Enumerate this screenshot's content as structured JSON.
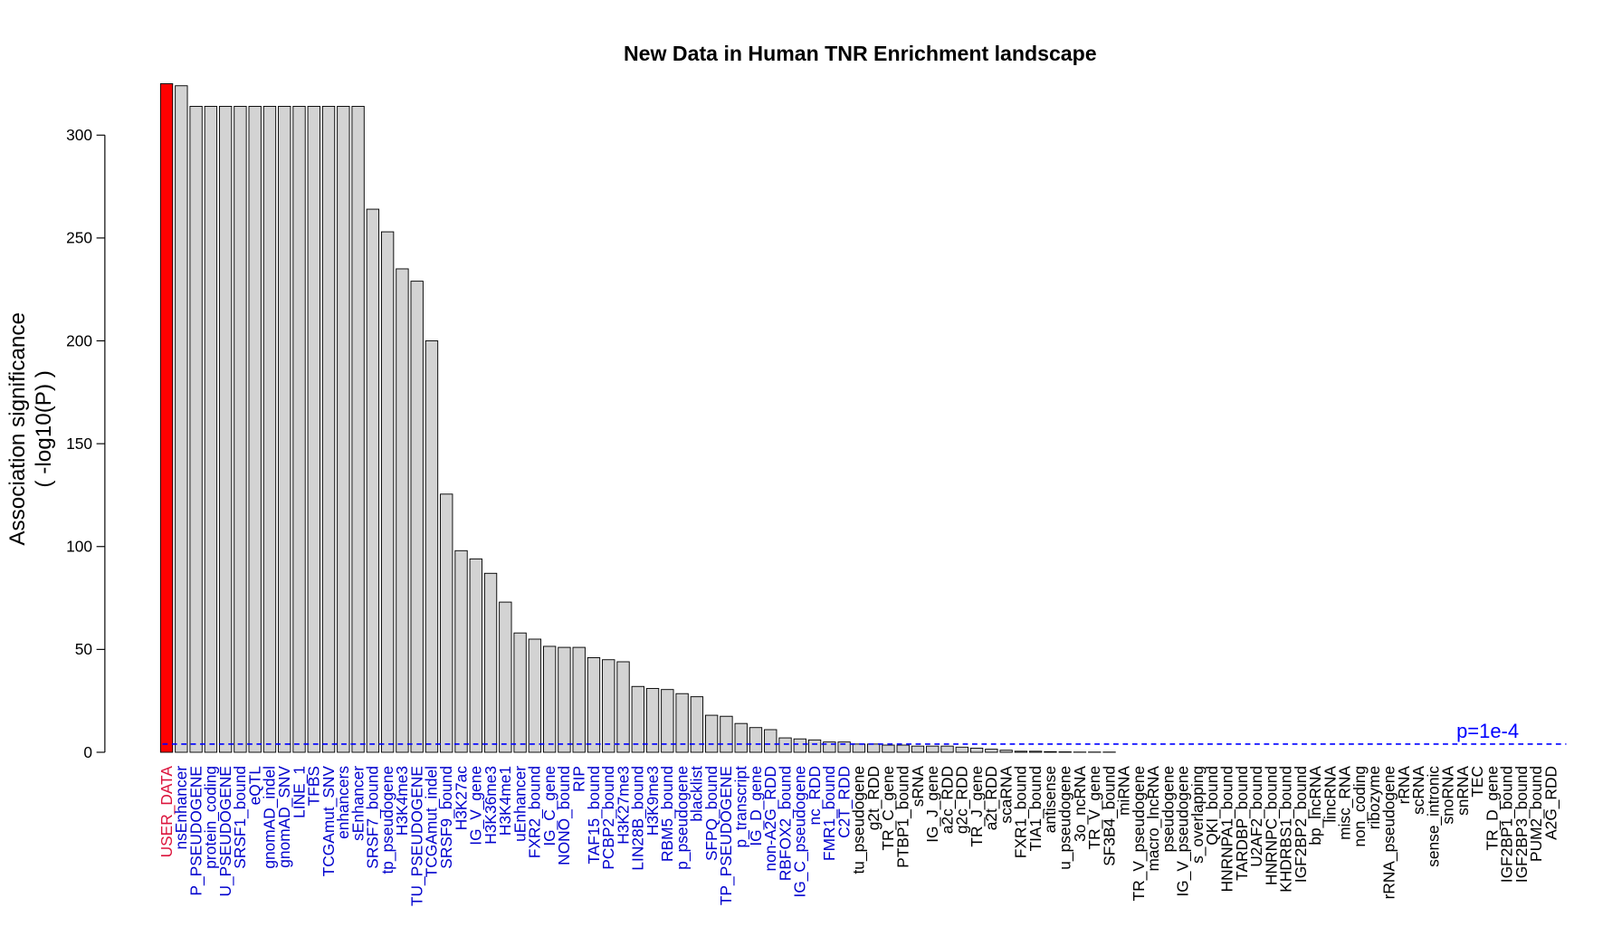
{
  "chart_data": {
    "type": "bar",
    "title": "New Data in Human TNR Enrichment landscape",
    "y_label": [
      "Association significance",
      "( -log10(P) )"
    ],
    "categories": [
      "USER_DATA",
      "nsEnhancer",
      "P_PSEUDOGENE",
      "protein_coding",
      "U_PSEUDOGENE",
      "SRSF1_bound",
      "eQTL",
      "gnomAD_indel",
      "gnomAD_SNV",
      "LINE_1",
      "TFBS",
      "TCGAmut_SNV",
      "enhancers",
      "sEnhancer",
      "SRSF7_bound",
      "tp_pseudogene",
      "H3K4me3",
      "TU_PSEUDOGENE",
      "TCGAmut_indel",
      "SRSF9_bound",
      "H3K27ac",
      "IG_V_gene",
      "H3K36me3",
      "H3K4me1",
      "uEnhancer",
      "FXR2_bound",
      "IG_C_gene",
      "NONO_bound",
      "RIP",
      "TAF15_bound",
      "PCBP2_bound",
      "H3K27me3",
      "LIN28B_bound",
      "H3K9me3",
      "RBM5_bound",
      "p_pseudogene",
      "blacklist",
      "SFPQ_bound",
      "TP_PSEUDOGENE",
      "p_transcript",
      "IG_D_gene",
      "non-A2G_RDD",
      "RBFOX2_bound",
      "IG_C_pseudogene",
      "nc_RDD",
      "FMR1_bound",
      "C2T_RDD",
      "tu_pseudogene",
      "g2t_RDD",
      "TR_C_gene",
      "PTBP1_bound",
      "sRNA",
      "IG_J_gene",
      "a2c_RDD",
      "g2c_RDD",
      "TR_J_gene",
      "a2t_RDD",
      "scaRNA",
      "FXR1_bound",
      "TIA1_bound",
      "antisense",
      "u_pseudogene",
      "3o_ncRNA",
      "TR_V_gene",
      "SF3B4_bound",
      "miRNA",
      "TR_V_pseudogene",
      "macro_lncRNA",
      "pseudogene",
      "IG_V_pseudogene",
      "s_overlapping",
      "QKI_bound",
      "HNRNPA1_bound",
      "TARDBP_bound",
      "U2AF2_bound",
      "HNRNPC_bound",
      "KHDRBS1_bound",
      "IGF2BP2_bound",
      "bp_lncRNA",
      "lincRNA",
      "misc_RNA",
      "non_coding",
      "ribozyme",
      "rRNA_pseudogene",
      "rRNA",
      "scRNA",
      "sense_intronic",
      "snoRNA",
      "snRNA",
      "TEC",
      "TR_D_gene",
      "IGF2BP1_bound",
      "IGF2BP3_bound",
      "PUM2_bound",
      "A2G_RDD"
    ],
    "values": [
      325,
      324,
      314,
      314,
      314,
      314,
      314,
      314,
      314,
      314,
      314,
      314,
      314,
      314,
      264,
      253,
      235,
      229,
      200,
      125.5,
      98,
      94,
      87,
      73,
      58,
      55,
      51.5,
      51,
      51,
      46,
      45,
      44,
      32,
      31,
      30.5,
      28.5,
      27,
      18,
      17.5,
      14,
      12,
      11,
      7,
      6.5,
      6,
      5,
      5,
      4,
      4,
      3.5,
      3.5,
      3,
      3,
      3,
      2.5,
      2,
      1.5,
      1,
      0.5,
      0.5,
      0.3,
      0.2,
      0.1,
      0.1,
      0.1,
      0,
      0,
      0,
      0,
      0,
      0,
      0,
      0,
      0,
      0,
      0,
      0,
      0,
      0,
      0,
      0,
      0,
      0,
      0,
      0,
      0,
      0,
      0,
      0,
      0,
      0,
      0,
      0,
      0,
      0
    ],
    "bar_colors": [
      "#ff0000",
      "#d3d3d3",
      "#d3d3d3",
      "#d3d3d3",
      "#d3d3d3",
      "#d3d3d3",
      "#d3d3d3",
      "#d3d3d3",
      "#d3d3d3",
      "#d3d3d3",
      "#d3d3d3",
      "#d3d3d3",
      "#d3d3d3",
      "#d3d3d3",
      "#d3d3d3",
      "#d3d3d3",
      "#d3d3d3",
      "#d3d3d3",
      "#d3d3d3",
      "#d3d3d3",
      "#d3d3d3",
      "#d3d3d3",
      "#d3d3d3",
      "#d3d3d3",
      "#d3d3d3",
      "#d3d3d3",
      "#d3d3d3",
      "#d3d3d3",
      "#d3d3d3",
      "#d3d3d3",
      "#d3d3d3",
      "#d3d3d3",
      "#d3d3d3",
      "#d3d3d3",
      "#d3d3d3",
      "#d3d3d3",
      "#d3d3d3",
      "#d3d3d3",
      "#d3d3d3",
      "#d3d3d3",
      "#d3d3d3",
      "#d3d3d3",
      "#d3d3d3",
      "#d3d3d3",
      "#d3d3d3",
      "#d3d3d3",
      "#d3d3d3",
      "#d3d3d3",
      "#d3d3d3",
      "#d3d3d3",
      "#d3d3d3",
      "#d3d3d3",
      "#d3d3d3",
      "#d3d3d3",
      "#d3d3d3",
      "#d3d3d3",
      "#d3d3d3",
      "#d3d3d3",
      "#d3d3d3",
      "#d3d3d3",
      "#d3d3d3",
      "#d3d3d3",
      "#d3d3d3",
      "#d3d3d3",
      "#d3d3d3",
      "#d3d3d3",
      "#d3d3d3",
      "#d3d3d3",
      "#d3d3d3",
      "#d3d3d3",
      "#d3d3d3",
      "#d3d3d3",
      "#d3d3d3",
      "#d3d3d3",
      "#d3d3d3",
      "#d3d3d3",
      "#d3d3d3",
      "#d3d3d3",
      "#d3d3d3",
      "#d3d3d3",
      "#d3d3d3",
      "#d3d3d3",
      "#d3d3d3",
      "#d3d3d3",
      "#d3d3d3",
      "#d3d3d3",
      "#d3d3d3",
      "#d3d3d3",
      "#d3d3d3",
      "#d3d3d3",
      "#d3d3d3",
      "#d3d3d3",
      "#d3d3d3",
      "#d3d3d3",
      "#d3d3d3"
    ],
    "label_colors": [
      "#dc143c",
      "#0000cd",
      "#0000cd",
      "#0000cd",
      "#0000cd",
      "#0000cd",
      "#0000cd",
      "#0000cd",
      "#0000cd",
      "#0000cd",
      "#0000cd",
      "#0000cd",
      "#0000cd",
      "#0000cd",
      "#0000cd",
      "#0000cd",
      "#0000cd",
      "#0000cd",
      "#0000cd",
      "#0000cd",
      "#0000cd",
      "#0000cd",
      "#0000cd",
      "#0000cd",
      "#0000cd",
      "#0000cd",
      "#0000cd",
      "#0000cd",
      "#0000cd",
      "#0000cd",
      "#0000cd",
      "#0000cd",
      "#0000cd",
      "#0000cd",
      "#0000cd",
      "#0000cd",
      "#0000cd",
      "#0000cd",
      "#0000cd",
      "#0000cd",
      "#0000cd",
      "#0000cd",
      "#0000cd",
      "#0000cd",
      "#0000cd",
      "#0000cd",
      "#0000cd",
      "#000000",
      "#000000",
      "#000000",
      "#000000",
      "#000000",
      "#000000",
      "#000000",
      "#000000",
      "#000000",
      "#000000",
      "#000000",
      "#000000",
      "#000000",
      "#000000",
      "#000000",
      "#000000",
      "#000000",
      "#000000",
      "#000000",
      "#000000",
      "#000000",
      "#000000",
      "#000000",
      "#000000",
      "#000000",
      "#000000",
      "#000000",
      "#000000",
      "#000000",
      "#000000",
      "#000000",
      "#000000",
      "#000000",
      "#000000",
      "#000000",
      "#000000",
      "#000000",
      "#000000",
      "#000000",
      "#000000",
      "#000000",
      "#000000",
      "#000000",
      "#000000",
      "#000000",
      "#000000",
      "#000000",
      "#000000"
    ],
    "ylim": [
      0,
      325
    ],
    "yticks": [
      0,
      50,
      100,
      150,
      200,
      250,
      300
    ],
    "threshold": {
      "value": 4,
      "label": "p=1e-4",
      "color": "#0000ff"
    }
  }
}
